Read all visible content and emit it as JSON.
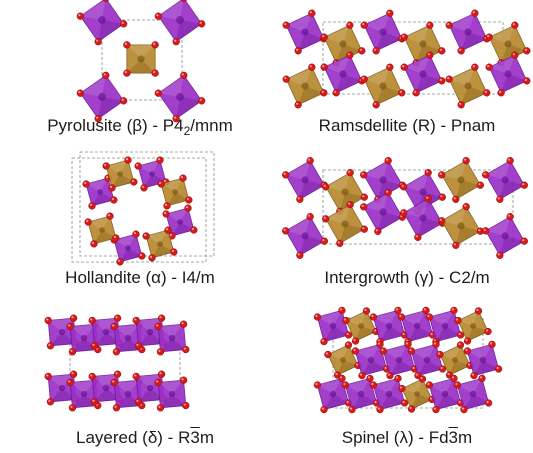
{
  "colors": {
    "purple": "#9b2fc7",
    "purple_dark": "#6a1596",
    "gold": "#b8892e",
    "gold_dark": "#7e5a14",
    "oxygen": "#d71a1a",
    "frame": "#8a8a8a"
  },
  "structures": [
    {
      "id": "pyrolusite",
      "name": "Pyrolusite (β) - P4",
      "sub": "2",
      "tail": "/mnm"
    },
    {
      "id": "ramsdellite",
      "name": "Ramsdellite (R) - Pnam"
    },
    {
      "id": "hollandite",
      "name": "Hollandite (α) - I4/m"
    },
    {
      "id": "intergrowth",
      "name": "Intergrowth (γ) - C2/m"
    },
    {
      "id": "layered",
      "name": "Layered (δ) - R",
      "bar": "3",
      "tail": "m"
    },
    {
      "id": "spinel",
      "name": "Spinel (λ) - Fd",
      "bar": "3",
      "tail": "m"
    }
  ]
}
